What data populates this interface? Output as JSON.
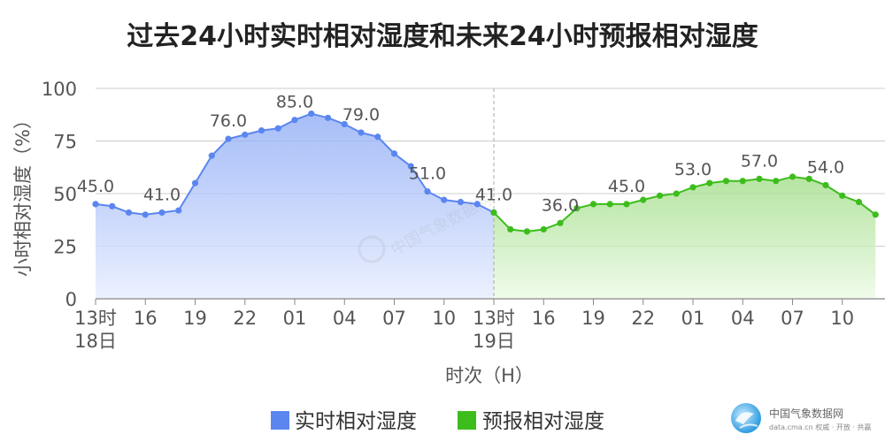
{
  "chart_data": {
    "type": "area",
    "title": "过去24小时实时相对湿度和未来24小时预报相对湿度",
    "xlabel": "时次（H）",
    "ylabel": "小时相对湿度（%）",
    "ylim": [
      0,
      100
    ],
    "yticks": [
      "0",
      "25",
      "50",
      "75",
      "100"
    ],
    "grid": true,
    "legend_position": "bottom-center",
    "x_tick_labels": [
      {
        "hour": 0,
        "line1": "13时",
        "line2": "18日"
      },
      {
        "hour": 3,
        "line1": "16",
        "line2": ""
      },
      {
        "hour": 6,
        "line1": "19",
        "line2": ""
      },
      {
        "hour": 9,
        "line1": "22",
        "line2": ""
      },
      {
        "hour": 12,
        "line1": "01",
        "line2": ""
      },
      {
        "hour": 15,
        "line1": "04",
        "line2": ""
      },
      {
        "hour": 18,
        "line1": "07",
        "line2": ""
      },
      {
        "hour": 21,
        "line1": "10",
        "line2": ""
      },
      {
        "hour": 24,
        "line1": "13时",
        "line2": "19日"
      },
      {
        "hour": 27,
        "line1": "16",
        "line2": ""
      },
      {
        "hour": 30,
        "line1": "19",
        "line2": ""
      },
      {
        "hour": 33,
        "line1": "22",
        "line2": ""
      },
      {
        "hour": 36,
        "line1": "01",
        "line2": ""
      },
      {
        "hour": 39,
        "line1": "04",
        "line2": ""
      },
      {
        "hour": 42,
        "line1": "07",
        "line2": ""
      },
      {
        "hour": 45,
        "line1": "10",
        "line2": ""
      }
    ],
    "series": [
      {
        "name": "实时相对湿度",
        "color": "#5b86f0",
        "x": [
          0,
          1,
          2,
          3,
          4,
          5,
          6,
          7,
          8,
          9,
          10,
          11,
          12,
          13,
          14,
          15,
          16,
          17,
          18,
          19,
          20,
          21,
          22,
          23,
          24
        ],
        "values": [
          45,
          44,
          41,
          40,
          41,
          42,
          55,
          68,
          76,
          78,
          80,
          81,
          85,
          88,
          86,
          83,
          79,
          77,
          69,
          63,
          51,
          47,
          46,
          45,
          41
        ]
      },
      {
        "name": "预报相对湿度",
        "color": "#3dbd1c",
        "x": [
          24,
          25,
          26,
          27,
          28,
          29,
          30,
          31,
          32,
          33,
          34,
          35,
          36,
          37,
          38,
          39,
          40,
          41,
          42,
          43,
          44,
          45,
          46,
          47
        ],
        "values": [
          41,
          33,
          32,
          33,
          36,
          43,
          45,
          45,
          45,
          47,
          49,
          50,
          53,
          55,
          56,
          56,
          57,
          56,
          58,
          57,
          54,
          49,
          46,
          40
        ]
      }
    ],
    "data_labels": [
      {
        "series": 0,
        "x": 0,
        "text": "45.0"
      },
      {
        "series": 0,
        "x": 4,
        "text": "41.0"
      },
      {
        "series": 0,
        "x": 8,
        "text": "76.0"
      },
      {
        "series": 0,
        "x": 12,
        "text": "85.0"
      },
      {
        "series": 0,
        "x": 16,
        "text": "79.0"
      },
      {
        "series": 0,
        "x": 20,
        "text": "51.0"
      },
      {
        "series": 0,
        "x": 24,
        "text": "41.0"
      },
      {
        "series": 1,
        "x": 28,
        "text": "36.0"
      },
      {
        "series": 1,
        "x": 32,
        "text": "45.0"
      },
      {
        "series": 1,
        "x": 36,
        "text": "53.0"
      },
      {
        "series": 1,
        "x": 40,
        "text": "57.0"
      },
      {
        "series": 1,
        "x": 44,
        "text": "54.0"
      }
    ]
  },
  "legend": {
    "items": [
      {
        "label": "实时相对湿度",
        "color": "#5b86f0"
      },
      {
        "label": "预报相对湿度",
        "color": "#3dbd1c"
      }
    ]
  },
  "logo": {
    "name": "中国气象数据网",
    "subtitle": "data.cma.cn 权威 · 开放 · 共赢",
    "icon": "weather-logo-icon"
  },
  "watermark": {
    "text": "中国气象数据网"
  }
}
